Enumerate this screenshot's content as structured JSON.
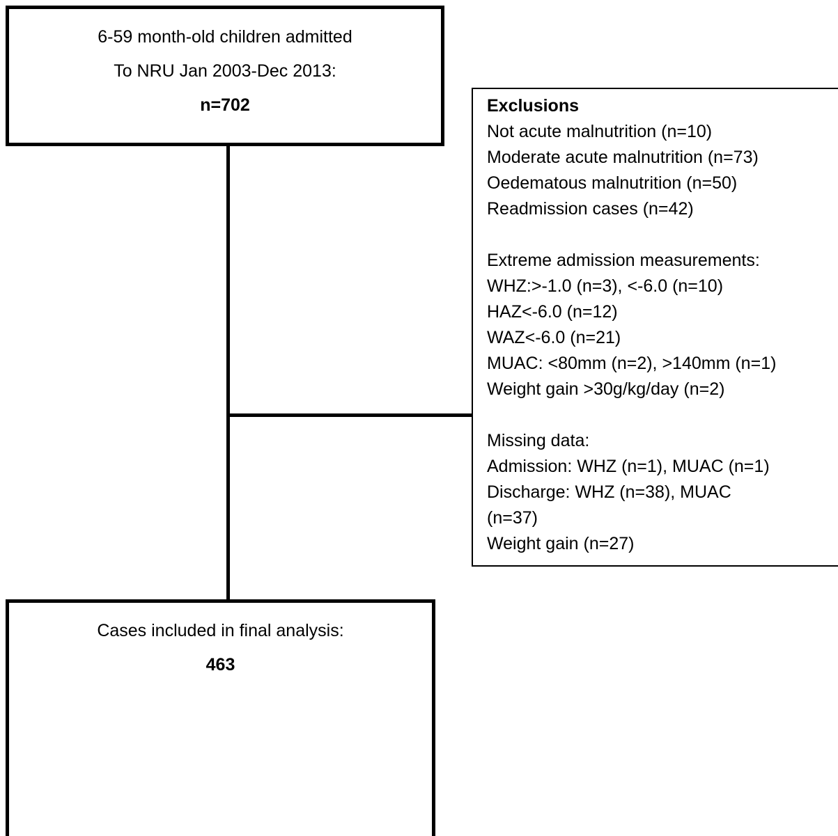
{
  "top_box": {
    "line1": "6-59 month-old children admitted",
    "line2": "To NRU Jan 2003-Dec 2013:",
    "line3": "n=702"
  },
  "exclusions": {
    "title": "Exclusions",
    "lines": [
      "Not acute malnutrition (n=10)",
      "Moderate acute malnutrition (n=73)",
      "Oedematous malnutrition (n=50)",
      "Readmission cases (n=42)",
      "",
      "Extreme admission measurements:",
      "WHZ:>-1.0 (n=3), <-6.0 (n=10)",
      "HAZ<-6.0 (n=12)",
      "WAZ<-6.0 (n=21)",
      "MUAC: <80mm (n=2), >140mm (n=1)",
      "Weight gain >30g/kg/day (n=2)",
      "",
      "Missing data:",
      "Admission: WHZ (n=1), MUAC (n=1)",
      "Discharge: WHZ (n=38), MUAC",
      "(n=37)",
      "Weight gain (n=27)"
    ]
  },
  "bottom_box": {
    "line1": "Cases included in final analysis:",
    "line2": "463"
  }
}
